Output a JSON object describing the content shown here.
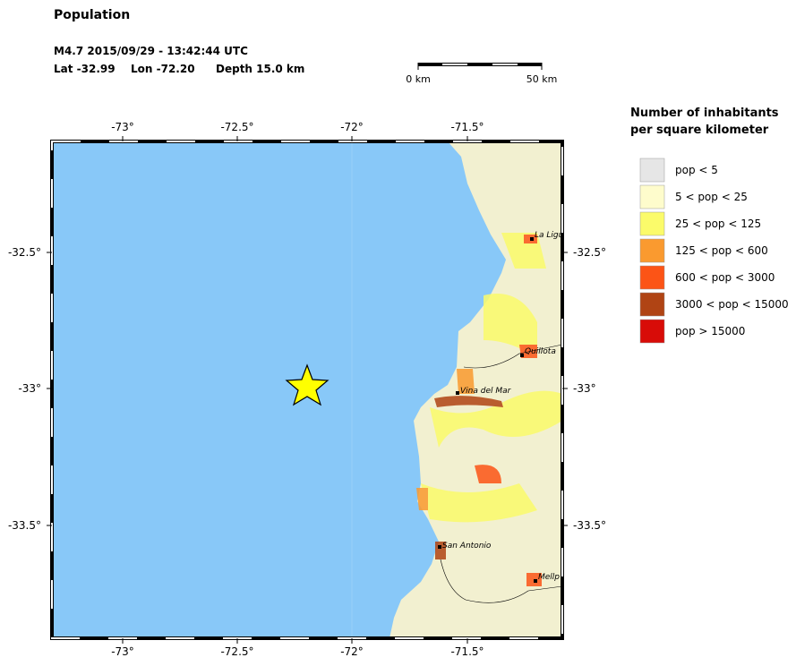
{
  "header": {
    "title": "Population",
    "event": "M4.7  2015/09/29 - 13:42:44 UTC",
    "lat": "Lat -32.99",
    "lon": "Lon -72.20",
    "depth": "Depth  15.0 km"
  },
  "scale_bar": {
    "start": "0 km",
    "end": "50 km"
  },
  "map": {
    "top_ticks": [
      "-73°",
      "-72.5°",
      "-72°",
      "-71.5°"
    ],
    "bottom_ticks": [
      "-73°",
      "-72.5°",
      "-72°",
      "-71.5°"
    ],
    "left_ticks": [
      "-32.5°",
      "-33°",
      "-33.5°"
    ],
    "right_ticks": [
      "-32.5°",
      "-33°",
      "-33.5°"
    ],
    "cities": [
      "La Ligu",
      "Quillota",
      "Vina del Mar",
      "San Antonio",
      "Mellp"
    ]
  },
  "legend": {
    "title_lines": [
      "Number of inhabitants",
      "per square kilometer"
    ],
    "items": [
      {
        "label": "pop < 5",
        "color": "#e6e6e6"
      },
      {
        "label": "5 < pop < 25",
        "color": "#fefccc"
      },
      {
        "label": "25 < pop < 125",
        "color": "#fbfb6a"
      },
      {
        "label": "125 < pop < 600",
        "color": "#fa9a2f"
      },
      {
        "label": "600 < pop < 3000",
        "color": "#fc5416"
      },
      {
        "label": "3000 < pop < 15000",
        "color": "#b04414"
      },
      {
        "label": "pop > 15000",
        "color": "#d80c08"
      }
    ]
  }
}
